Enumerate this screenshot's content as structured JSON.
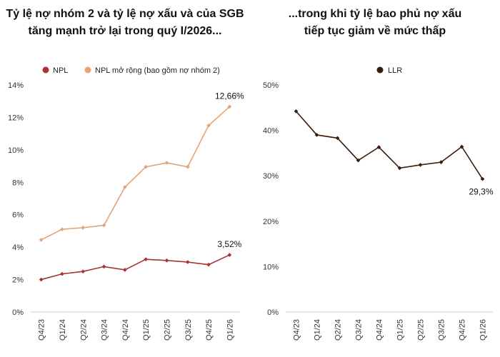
{
  "titles": {
    "left": [
      "Tỷ lệ nợ nhóm 2 và tỷ lệ nợ xấu và của SGB",
      "tăng mạnh trở lại trong quý I/2026..."
    ],
    "right": [
      "...trong khi tỷ lệ bao phủ nợ xấu",
      "tiếp tục giảm về mức thấp"
    ]
  },
  "chart_data": [
    {
      "type": "line",
      "categories": [
        "Q4/23",
        "Q1/24",
        "Q2/24",
        "Q3/24",
        "Q4/24",
        "Q1/25",
        "Q2/25",
        "Q3/25",
        "Q4/25",
        "Q1/26"
      ],
      "ylim": [
        0,
        14
      ],
      "yticks": [
        "0%",
        "2%",
        "4%",
        "6%",
        "8%",
        "10%",
        "12%",
        "14%"
      ],
      "legend_position": "top",
      "grid": false,
      "series": [
        {
          "name": "NPL",
          "color": "#a83232",
          "values": [
            2.0,
            2.35,
            2.5,
            2.8,
            2.6,
            3.25,
            3.18,
            3.08,
            2.92,
            3.52
          ],
          "end_label": "3,52%"
        },
        {
          "name": "NPL mở rộng (bao gồm nợ nhóm 2)",
          "color": "#e0a478",
          "values": [
            4.45,
            5.1,
            5.2,
            5.35,
            7.7,
            8.95,
            9.2,
            8.95,
            11.5,
            12.66
          ],
          "end_label": "12,66%"
        }
      ]
    },
    {
      "type": "line",
      "categories": [
        "Q4/23",
        "Q1/24",
        "Q2/24",
        "Q3/24",
        "Q4/24",
        "Q1/25",
        "Q2/25",
        "Q3/25",
        "Q4/25",
        "Q1/26"
      ],
      "ylim": [
        0,
        50
      ],
      "yticks": [
        "0%",
        "10%",
        "20%",
        "30%",
        "40%",
        "50%"
      ],
      "legend_position": "top",
      "grid": false,
      "series": [
        {
          "name": "LLR",
          "color": "#3b1c0c",
          "values": [
            44.2,
            39.0,
            38.3,
            33.4,
            36.3,
            31.7,
            32.4,
            33.0,
            36.4,
            29.3
          ],
          "end_label": "29,3%"
        }
      ]
    }
  ]
}
